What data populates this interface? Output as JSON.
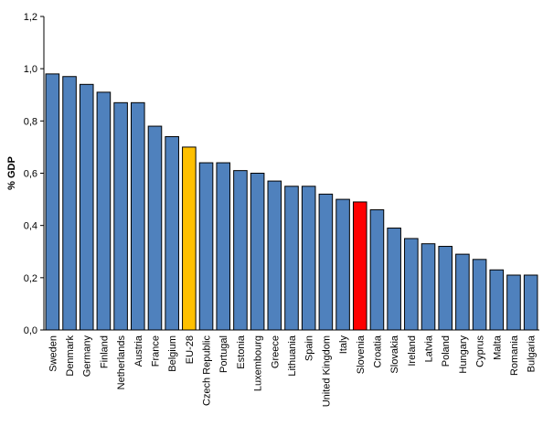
{
  "chart_data": {
    "type": "bar",
    "title": "",
    "xlabel": "",
    "ylabel": "% GDP",
    "ylim": [
      0,
      1.2
    ],
    "yticks": [
      "0,0",
      "0,2",
      "0,4",
      "0,6",
      "0,8",
      "1,0",
      "1,2"
    ],
    "grid": false,
    "legend": "none",
    "categories": [
      "Sweden",
      "Denmark",
      "Germany",
      "Finland",
      "Netherlands",
      "Austria",
      "France",
      "Belgium",
      "EU-28",
      "Czech Republic",
      "Portugal",
      "Estonia",
      "Luxembourg",
      "Greece",
      "Lithuania",
      "Spain",
      "United Kingdom",
      "Italy",
      "Slovenia",
      "Croatia",
      "Slovakia",
      "Ireland",
      "Latvia",
      "Poland",
      "Hungary",
      "Cyprus",
      "Malta",
      "Romania",
      "Bulgaria"
    ],
    "values": [
      0.98,
      0.97,
      0.94,
      0.91,
      0.87,
      0.87,
      0.78,
      0.74,
      0.7,
      0.64,
      0.64,
      0.61,
      0.6,
      0.57,
      0.55,
      0.55,
      0.52,
      0.5,
      0.49,
      0.46,
      0.39,
      0.35,
      0.33,
      0.32,
      0.29,
      0.27,
      0.23,
      0.21,
      0.21
    ],
    "colors": {
      "default": "#4F81BD",
      "highlight_eu": "#FFC000",
      "highlight_slovenia": "#FF0000",
      "outline": "#000000"
    },
    "highlights": {
      "EU-28": "highlight_eu",
      "Slovenia": "highlight_slovenia"
    }
  }
}
